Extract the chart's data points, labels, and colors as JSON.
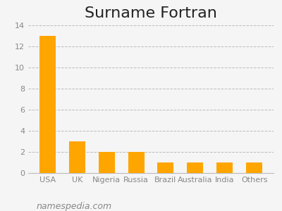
{
  "title": "Surname Fortran",
  "categories": [
    "USA",
    "UK",
    "Nigeria",
    "Russia",
    "Brazil",
    "Australia",
    "India",
    "Others"
  ],
  "values": [
    13,
    3,
    2,
    2,
    1,
    1,
    1,
    1
  ],
  "bar_color": "#FFA500",
  "background_color": "#f5f5f5",
  "ylim": [
    0,
    14
  ],
  "yticks": [
    0,
    2,
    4,
    6,
    8,
    10,
    12,
    14
  ],
  "grid_color": "#bbbbbb",
  "title_fontsize": 16,
  "tick_fontsize": 8,
  "watermark": "namespedia.com",
  "watermark_fontsize": 9
}
